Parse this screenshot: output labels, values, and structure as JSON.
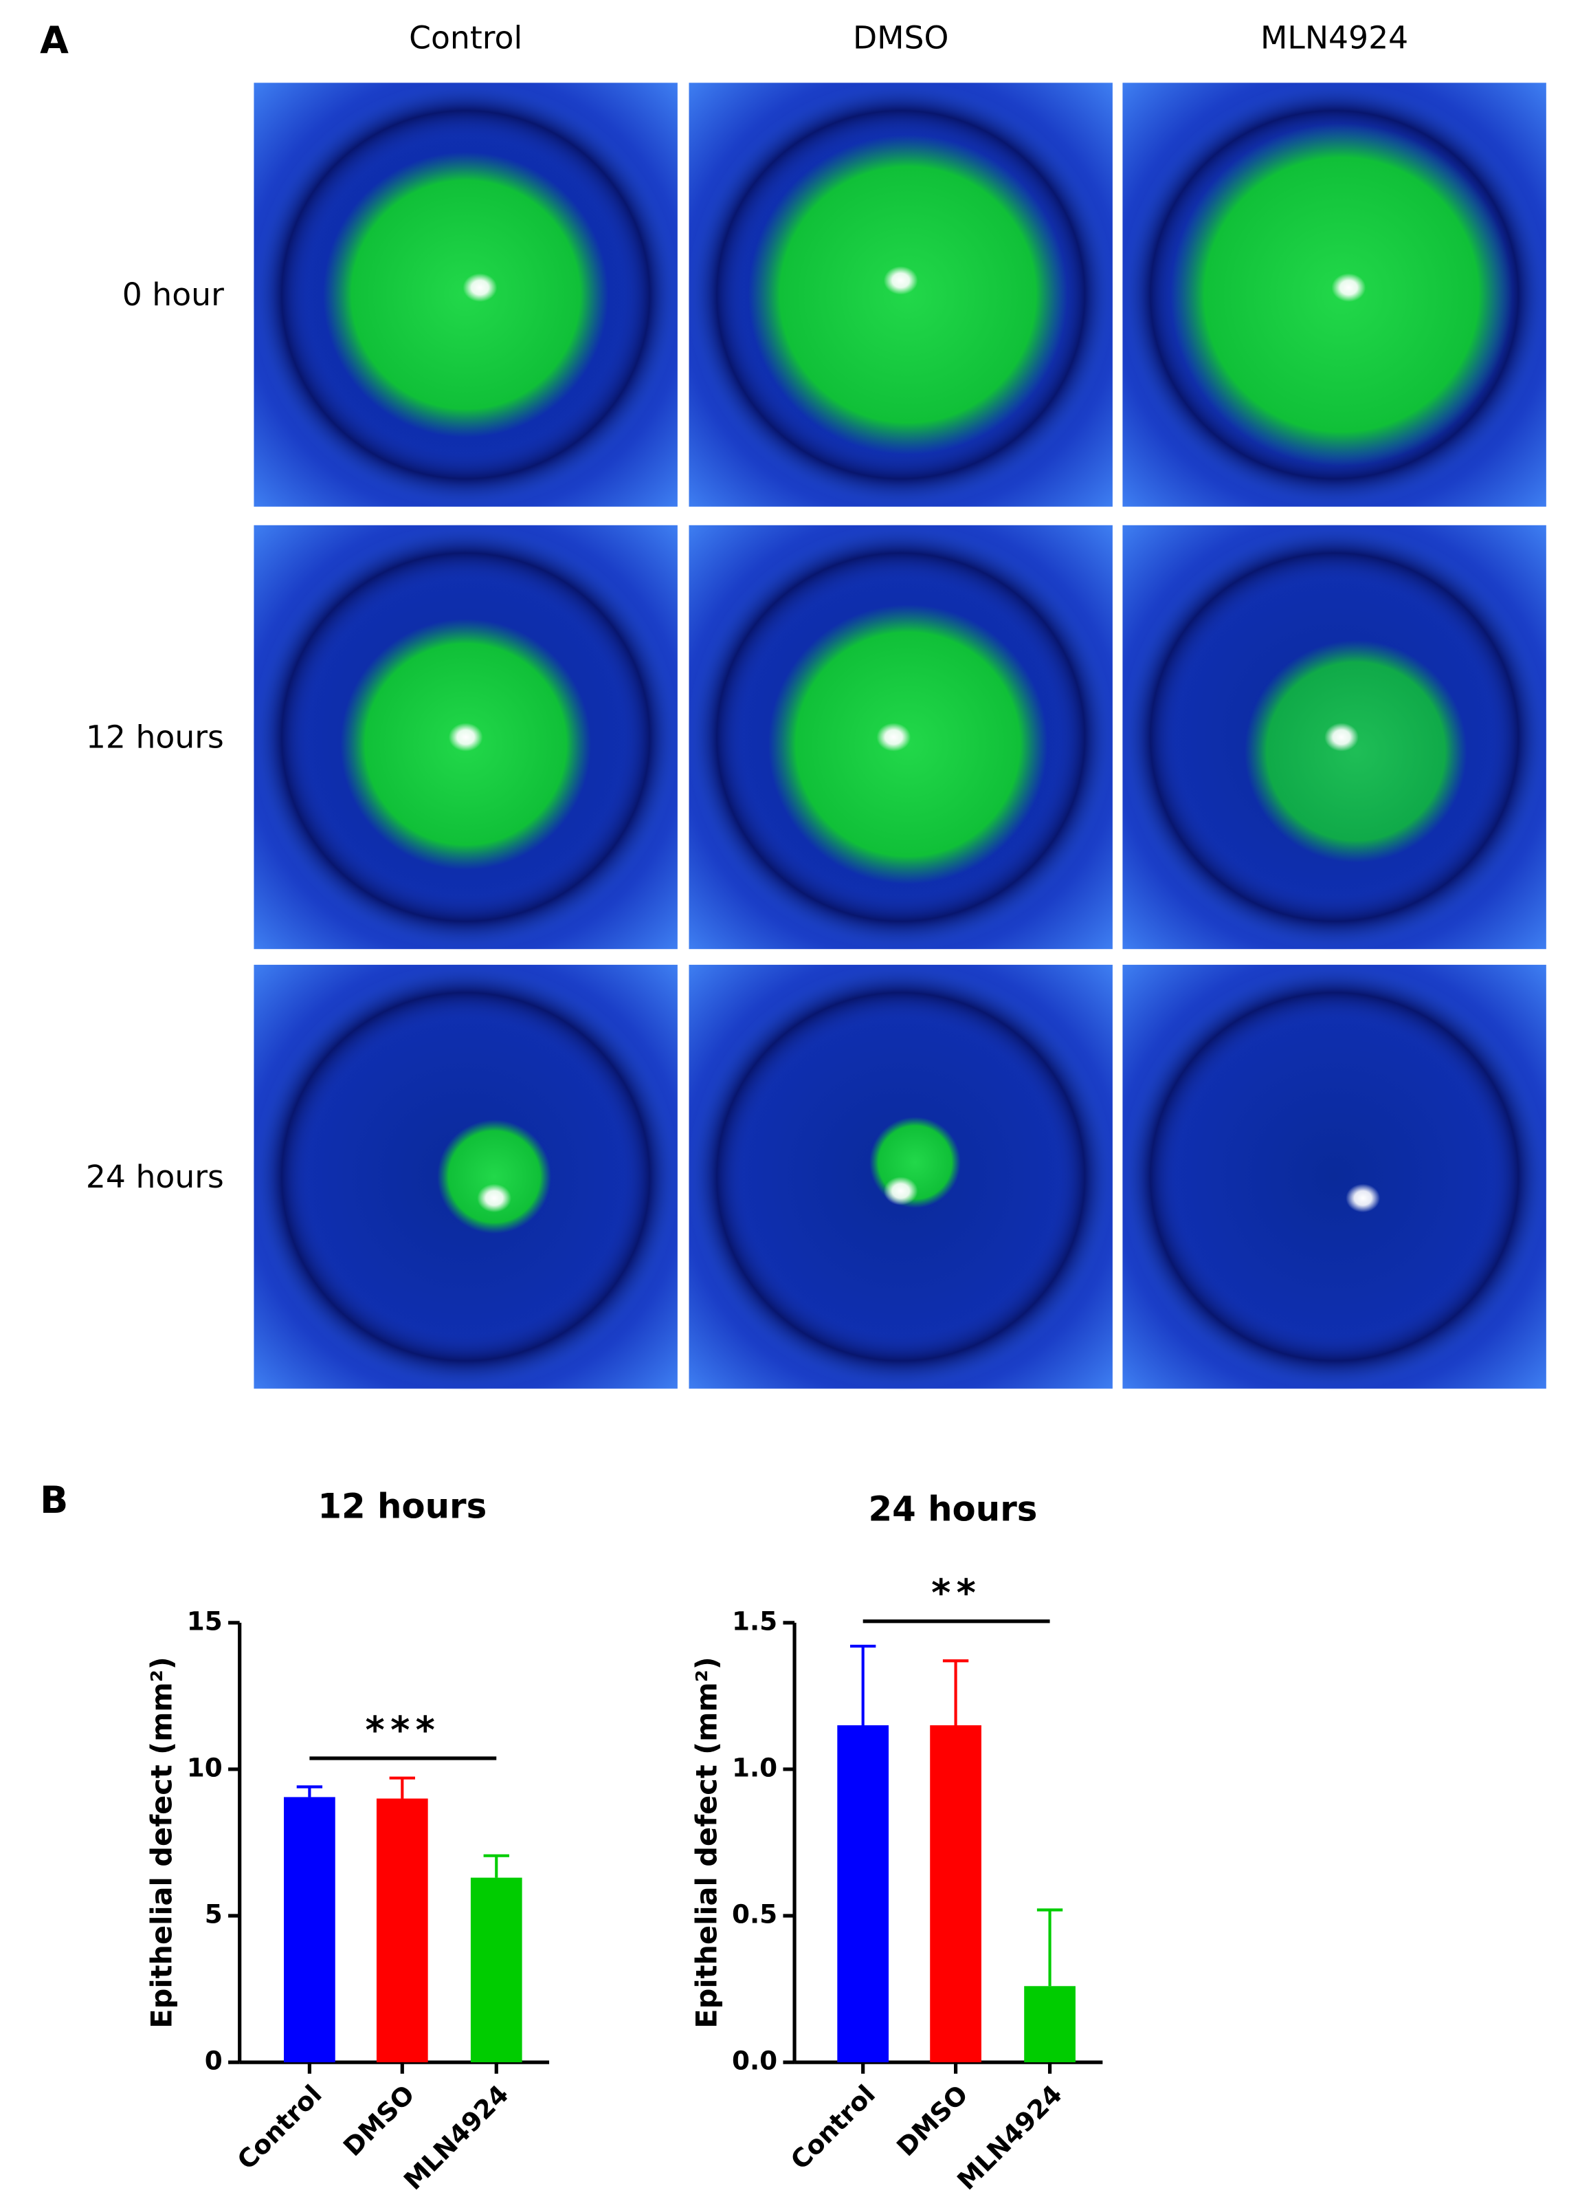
{
  "panel_a": {
    "label": "A",
    "columns": [
      "Control",
      "DMSO",
      "MLN4924"
    ],
    "rows": [
      "0 hour",
      "12 hours",
      "24 hours"
    ]
  },
  "panel_b": {
    "label": "B"
  },
  "chart_data": [
    {
      "type": "bar",
      "title": "12 hours",
      "ylabel": "Epithelial defect (mm²)",
      "categories": [
        "Control",
        "DMSO",
        "MLN4924"
      ],
      "values": [
        9.05,
        9.0,
        6.3
      ],
      "errors": [
        0.35,
        0.7,
        0.75
      ],
      "colors": [
        "#0000ff",
        "#ff0000",
        "#00cc00"
      ],
      "ylim": [
        0,
        15
      ],
      "yticks": [
        0,
        5,
        10,
        15
      ],
      "annotation": "***"
    },
    {
      "type": "bar",
      "title": "24 hours",
      "ylabel": "Epithelial defect (mm²)",
      "categories": [
        "Control",
        "DMSO",
        "MLN4924"
      ],
      "values": [
        1.15,
        1.15,
        0.26
      ],
      "errors": [
        0.27,
        0.22,
        0.26
      ],
      "colors": [
        "#0000ff",
        "#ff0000",
        "#00cc00"
      ],
      "ylim": [
        0,
        1.5
      ],
      "yticks": [
        {
          "value": 0,
          "label": "0.0"
        },
        0.5,
        {
          "value": 1,
          "label": "1.0"
        },
        1.5
      ],
      "annotation": "**"
    }
  ]
}
